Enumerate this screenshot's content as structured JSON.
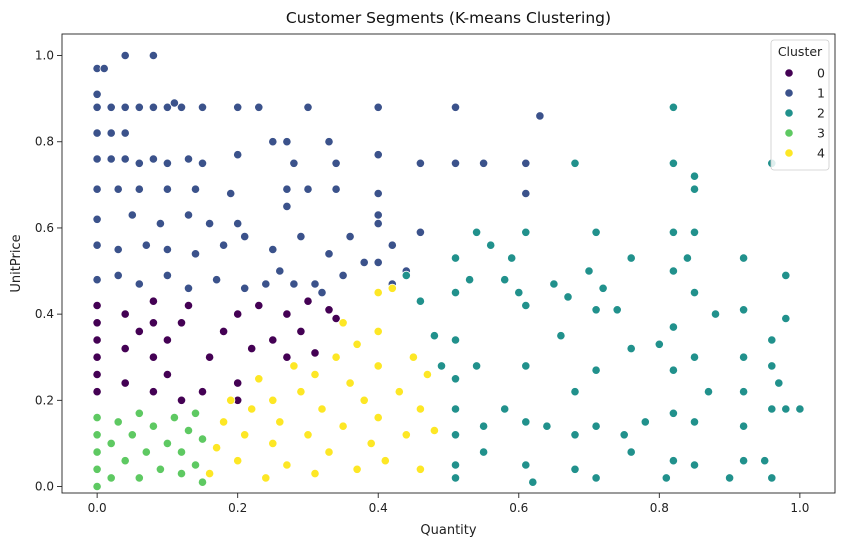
{
  "chart_data": {
    "type": "scatter",
    "title": "Customer Segments (K-means Clustering)",
    "xlabel": "Quantity",
    "ylabel": "UnitPrice",
    "xlim": [
      -0.05,
      1.05
    ],
    "ylim": [
      -0.015,
      1.05
    ],
    "x_ticks": [
      "0.0",
      "0.2",
      "0.4",
      "0.6",
      "0.8",
      "1.0"
    ],
    "y_ticks": [
      "0.0",
      "0.2",
      "0.4",
      "0.6",
      "0.8",
      "1.0"
    ],
    "grid": false,
    "legend": {
      "title": "Cluster",
      "placement": "top-right",
      "entries": [
        "0",
        "1",
        "2",
        "3",
        "4"
      ]
    },
    "series": [
      {
        "name": "0",
        "color": "#440154",
        "points": [
          [
            0.0,
            0.22
          ],
          [
            0.0,
            0.26
          ],
          [
            0.0,
            0.3
          ],
          [
            0.0,
            0.34
          ],
          [
            0.0,
            0.38
          ],
          [
            0.0,
            0.42
          ],
          [
            0.04,
            0.24
          ],
          [
            0.04,
            0.32
          ],
          [
            0.04,
            0.4
          ],
          [
            0.06,
            0.36
          ],
          [
            0.08,
            0.22
          ],
          [
            0.08,
            0.3
          ],
          [
            0.08,
            0.38
          ],
          [
            0.08,
            0.43
          ],
          [
            0.1,
            0.26
          ],
          [
            0.1,
            0.34
          ],
          [
            0.12,
            0.2
          ],
          [
            0.12,
            0.38
          ],
          [
            0.13,
            0.42
          ],
          [
            0.16,
            0.3
          ],
          [
            0.18,
            0.36
          ],
          [
            0.2,
            0.24
          ],
          [
            0.2,
            0.4
          ],
          [
            0.22,
            0.32
          ],
          [
            0.23,
            0.42
          ],
          [
            0.25,
            0.34
          ],
          [
            0.27,
            0.3
          ],
          [
            0.27,
            0.4
          ],
          [
            0.29,
            0.36
          ],
          [
            0.3,
            0.43
          ],
          [
            0.31,
            0.31
          ],
          [
            0.33,
            0.41
          ],
          [
            0.34,
            0.39
          ],
          [
            0.2,
            0.2
          ],
          [
            0.15,
            0.22
          ]
        ]
      },
      {
        "name": "1",
        "color": "#3b528b",
        "points": [
          [
            0.0,
            0.97
          ],
          [
            0.01,
            0.97
          ],
          [
            0.0,
            0.91
          ],
          [
            0.04,
            1.0
          ],
          [
            0.08,
            1.0
          ],
          [
            0.0,
            0.88
          ],
          [
            0.02,
            0.88
          ],
          [
            0.04,
            0.88
          ],
          [
            0.06,
            0.88
          ],
          [
            0.08,
            0.88
          ],
          [
            0.1,
            0.88
          ],
          [
            0.12,
            0.88
          ],
          [
            0.15,
            0.88
          ],
          [
            0.2,
            0.88
          ],
          [
            0.23,
            0.88
          ],
          [
            0.3,
            0.88
          ],
          [
            0.4,
            0.88
          ],
          [
            0.51,
            0.88
          ],
          [
            0.63,
            0.86
          ],
          [
            0.11,
            0.89
          ],
          [
            0.0,
            0.82
          ],
          [
            0.02,
            0.82
          ],
          [
            0.04,
            0.82
          ],
          [
            0.0,
            0.76
          ],
          [
            0.02,
            0.76
          ],
          [
            0.04,
            0.76
          ],
          [
            0.06,
            0.75
          ],
          [
            0.08,
            0.76
          ],
          [
            0.1,
            0.75
          ],
          [
            0.13,
            0.76
          ],
          [
            0.15,
            0.75
          ],
          [
            0.2,
            0.77
          ],
          [
            0.25,
            0.8
          ],
          [
            0.27,
            0.8
          ],
          [
            0.28,
            0.75
          ],
          [
            0.33,
            0.8
          ],
          [
            0.34,
            0.75
          ],
          [
            0.4,
            0.77
          ],
          [
            0.46,
            0.75
          ],
          [
            0.51,
            0.75
          ],
          [
            0.55,
            0.75
          ],
          [
            0.61,
            0.75
          ],
          [
            0.0,
            0.69
          ],
          [
            0.03,
            0.69
          ],
          [
            0.06,
            0.69
          ],
          [
            0.1,
            0.69
          ],
          [
            0.14,
            0.69
          ],
          [
            0.19,
            0.68
          ],
          [
            0.27,
            0.69
          ],
          [
            0.3,
            0.69
          ],
          [
            0.34,
            0.69
          ],
          [
            0.4,
            0.68
          ],
          [
            0.61,
            0.68
          ],
          [
            0.0,
            0.62
          ],
          [
            0.05,
            0.63
          ],
          [
            0.09,
            0.61
          ],
          [
            0.13,
            0.63
          ],
          [
            0.16,
            0.61
          ],
          [
            0.2,
            0.61
          ],
          [
            0.27,
            0.65
          ],
          [
            0.4,
            0.63
          ],
          [
            0.4,
            0.61
          ],
          [
            0.46,
            0.59
          ],
          [
            0.0,
            0.56
          ],
          [
            0.03,
            0.55
          ],
          [
            0.07,
            0.56
          ],
          [
            0.1,
            0.55
          ],
          [
            0.14,
            0.54
          ],
          [
            0.18,
            0.56
          ],
          [
            0.21,
            0.58
          ],
          [
            0.25,
            0.55
          ],
          [
            0.29,
            0.58
          ],
          [
            0.33,
            0.54
          ],
          [
            0.36,
            0.58
          ],
          [
            0.38,
            0.52
          ],
          [
            0.42,
            0.56
          ],
          [
            0.44,
            0.5
          ],
          [
            0.35,
            0.49
          ],
          [
            0.31,
            0.47
          ],
          [
            0.26,
            0.5
          ],
          [
            0.0,
            0.48
          ],
          [
            0.03,
            0.49
          ],
          [
            0.06,
            0.47
          ],
          [
            0.1,
            0.49
          ],
          [
            0.13,
            0.46
          ],
          [
            0.17,
            0.48
          ],
          [
            0.21,
            0.46
          ],
          [
            0.24,
            0.47
          ],
          [
            0.28,
            0.47
          ],
          [
            0.32,
            0.45
          ],
          [
            0.42,
            0.47
          ],
          [
            0.4,
            0.52
          ]
        ]
      },
      {
        "name": "2",
        "color": "#21918c",
        "points": [
          [
            0.44,
            0.49
          ],
          [
            0.46,
            0.43
          ],
          [
            0.48,
            0.35
          ],
          [
            0.49,
            0.28
          ],
          [
            0.51,
            0.53
          ],
          [
            0.51,
            0.45
          ],
          [
            0.51,
            0.34
          ],
          [
            0.51,
            0.25
          ],
          [
            0.51,
            0.18
          ],
          [
            0.51,
            0.12
          ],
          [
            0.51,
            0.05
          ],
          [
            0.51,
            0.02
          ],
          [
            0.53,
            0.48
          ],
          [
            0.54,
            0.59
          ],
          [
            0.54,
            0.28
          ],
          [
            0.55,
            0.14
          ],
          [
            0.55,
            0.08
          ],
          [
            0.56,
            0.56
          ],
          [
            0.58,
            0.48
          ],
          [
            0.58,
            0.18
          ],
          [
            0.59,
            0.53
          ],
          [
            0.6,
            0.45
          ],
          [
            0.61,
            0.59
          ],
          [
            0.61,
            0.42
          ],
          [
            0.61,
            0.28
          ],
          [
            0.61,
            0.15
          ],
          [
            0.61,
            0.05
          ],
          [
            0.62,
            0.01
          ],
          [
            0.64,
            0.14
          ],
          [
            0.65,
            0.47
          ],
          [
            0.66,
            0.35
          ],
          [
            0.67,
            0.44
          ],
          [
            0.68,
            0.75
          ],
          [
            0.68,
            0.22
          ],
          [
            0.68,
            0.12
          ],
          [
            0.68,
            0.04
          ],
          [
            0.7,
            0.5
          ],
          [
            0.71,
            0.59
          ],
          [
            0.71,
            0.41
          ],
          [
            0.71,
            0.27
          ],
          [
            0.71,
            0.14
          ],
          [
            0.71,
            0.02
          ],
          [
            0.72,
            0.46
          ],
          [
            0.74,
            0.41
          ],
          [
            0.75,
            0.12
          ],
          [
            0.76,
            0.53
          ],
          [
            0.76,
            0.32
          ],
          [
            0.76,
            0.08
          ],
          [
            0.78,
            0.15
          ],
          [
            0.8,
            0.33
          ],
          [
            0.81,
            0.02
          ],
          [
            0.82,
            0.88
          ],
          [
            0.82,
            0.75
          ],
          [
            0.82,
            0.59
          ],
          [
            0.82,
            0.5
          ],
          [
            0.82,
            0.37
          ],
          [
            0.82,
            0.27
          ],
          [
            0.82,
            0.17
          ],
          [
            0.82,
            0.06
          ],
          [
            0.84,
            0.53
          ],
          [
            0.85,
            0.72
          ],
          [
            0.85,
            0.69
          ],
          [
            0.85,
            0.59
          ],
          [
            0.85,
            0.45
          ],
          [
            0.85,
            0.3
          ],
          [
            0.85,
            0.15
          ],
          [
            0.85,
            0.05
          ],
          [
            0.87,
            0.22
          ],
          [
            0.88,
            0.4
          ],
          [
            0.9,
            0.02
          ],
          [
            0.92,
            0.53
          ],
          [
            0.92,
            0.41
          ],
          [
            0.92,
            0.3
          ],
          [
            0.92,
            0.22
          ],
          [
            0.92,
            0.14
          ],
          [
            0.92,
            0.06
          ],
          [
            0.95,
            0.06
          ],
          [
            0.96,
            0.75
          ],
          [
            0.96,
            0.34
          ],
          [
            0.96,
            0.28
          ],
          [
            0.96,
            0.02
          ],
          [
            0.98,
            0.49
          ],
          [
            0.98,
            0.39
          ],
          [
            0.98,
            0.18
          ],
          [
            1.0,
            0.18
          ],
          [
            0.96,
            0.18
          ],
          [
            0.97,
            0.24
          ]
        ]
      },
      {
        "name": "3",
        "color": "#5ec962",
        "points": [
          [
            0.0,
            0.0
          ],
          [
            0.0,
            0.04
          ],
          [
            0.0,
            0.08
          ],
          [
            0.0,
            0.12
          ],
          [
            0.0,
            0.16
          ],
          [
            0.02,
            0.02
          ],
          [
            0.02,
            0.1
          ],
          [
            0.03,
            0.15
          ],
          [
            0.04,
            0.06
          ],
          [
            0.05,
            0.12
          ],
          [
            0.06,
            0.02
          ],
          [
            0.06,
            0.17
          ],
          [
            0.07,
            0.08
          ],
          [
            0.08,
            0.14
          ],
          [
            0.09,
            0.04
          ],
          [
            0.1,
            0.1
          ],
          [
            0.11,
            0.16
          ],
          [
            0.12,
            0.03
          ],
          [
            0.12,
            0.08
          ],
          [
            0.13,
            0.13
          ],
          [
            0.14,
            0.05
          ],
          [
            0.14,
            0.17
          ],
          [
            0.15,
            0.11
          ],
          [
            0.15,
            0.01
          ]
        ]
      },
      {
        "name": "4",
        "color": "#fde725",
        "points": [
          [
            0.16,
            0.03
          ],
          [
            0.17,
            0.09
          ],
          [
            0.18,
            0.15
          ],
          [
            0.19,
            0.2
          ],
          [
            0.2,
            0.06
          ],
          [
            0.21,
            0.12
          ],
          [
            0.22,
            0.18
          ],
          [
            0.23,
            0.25
          ],
          [
            0.24,
            0.02
          ],
          [
            0.25,
            0.1
          ],
          [
            0.25,
            0.2
          ],
          [
            0.26,
            0.15
          ],
          [
            0.27,
            0.05
          ],
          [
            0.28,
            0.28
          ],
          [
            0.29,
            0.22
          ],
          [
            0.3,
            0.12
          ],
          [
            0.31,
            0.03
          ],
          [
            0.31,
            0.26
          ],
          [
            0.32,
            0.18
          ],
          [
            0.33,
            0.08
          ],
          [
            0.34,
            0.3
          ],
          [
            0.35,
            0.14
          ],
          [
            0.35,
            0.38
          ],
          [
            0.36,
            0.24
          ],
          [
            0.37,
            0.04
          ],
          [
            0.37,
            0.33
          ],
          [
            0.38,
            0.2
          ],
          [
            0.39,
            0.1
          ],
          [
            0.4,
            0.45
          ],
          [
            0.4,
            0.36
          ],
          [
            0.4,
            0.28
          ],
          [
            0.4,
            0.16
          ],
          [
            0.41,
            0.06
          ],
          [
            0.42,
            0.46
          ],
          [
            0.43,
            0.22
          ],
          [
            0.44,
            0.12
          ],
          [
            0.45,
            0.3
          ],
          [
            0.46,
            0.18
          ],
          [
            0.46,
            0.04
          ],
          [
            0.47,
            0.26
          ],
          [
            0.48,
            0.13
          ]
        ]
      }
    ]
  }
}
